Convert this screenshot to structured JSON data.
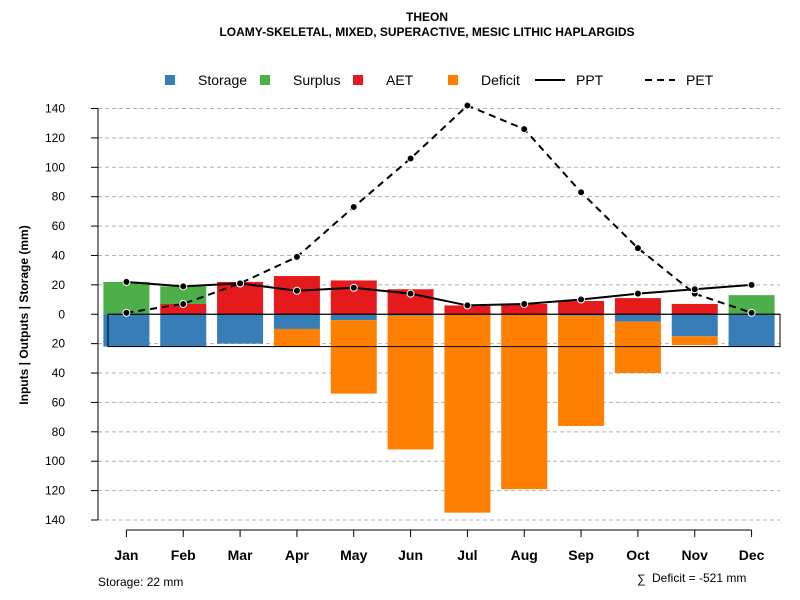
{
  "chart_data": {
    "type": "bar",
    "title": "THEON",
    "subtitle": "LOAMY-SKELETAL, MIXED, SUPERACTIVE, MESIC LITHIC HAPLARGIDS",
    "ylabel": "Inputs | Outputs | Storage    (mm)",
    "ylim": [
      -140,
      140
    ],
    "yticks": [
      140,
      120,
      100,
      80,
      60,
      40,
      20,
      0,
      -20,
      -40,
      -60,
      -80,
      -100,
      -120,
      -140
    ],
    "ytick_labels": [
      "140",
      "120",
      "100",
      "80",
      "60",
      "40",
      "20",
      "0",
      "20",
      "40",
      "60",
      "80",
      "100",
      "120",
      "140"
    ],
    "categories": [
      "Jan",
      "Feb",
      "Mar",
      "Apr",
      "May",
      "Jun",
      "Jul",
      "Aug",
      "Sep",
      "Oct",
      "Nov",
      "Dec"
    ],
    "legend": {
      "placement": "top",
      "entries": [
        {
          "key": "storage",
          "label": "Storage",
          "kind": "box"
        },
        {
          "key": "surplus",
          "label": "Surplus",
          "kind": "box"
        },
        {
          "key": "aet",
          "label": "AET",
          "kind": "box"
        },
        {
          "key": "deficit",
          "label": "Deficit",
          "kind": "box"
        },
        {
          "key": "ppt",
          "label": "PPT",
          "kind": "solid"
        },
        {
          "key": "pet",
          "label": "PET",
          "kind": "dashed"
        }
      ]
    },
    "colors": {
      "storage": "#377EB8",
      "surplus": "#4DAF4A",
      "aet": "#E41A1C",
      "deficit": "#FF7F00",
      "line": "#000000",
      "grid": "#b0b0b0"
    },
    "series": [
      {
        "name": "AET",
        "key": "aet",
        "values": [
          0,
          7,
          22,
          26,
          23,
          17,
          6,
          7,
          9,
          11,
          7,
          0
        ]
      },
      {
        "name": "Surplus",
        "key": "surplus",
        "values": [
          22,
          12,
          0,
          0,
          0,
          0,
          0,
          0,
          0,
          0,
          0,
          13
        ]
      },
      {
        "name": "Storage (utilization)",
        "key": "storage",
        "values": [
          -22,
          -22,
          -20,
          -10,
          -4,
          -1,
          0,
          0,
          -1,
          -5,
          -15,
          -22
        ]
      },
      {
        "name": "Deficit",
        "key": "deficit",
        "values": [
          0,
          0,
          0,
          -12,
          -50,
          -91,
          -135,
          -119,
          -75,
          -35,
          -6,
          0
        ]
      },
      {
        "name": "PPT",
        "key": "ppt",
        "values": [
          22,
          19,
          21,
          16,
          18,
          14,
          6,
          7,
          10,
          14,
          17,
          20
        ]
      },
      {
        "name": "PET",
        "key": "pet",
        "values": [
          1,
          7,
          21,
          39,
          73,
          106,
          142,
          126,
          83,
          45,
          14,
          1
        ]
      }
    ],
    "storage_band": -22,
    "grid": true
  },
  "footer": {
    "storage_note": "Storage: 22 mm",
    "deficit_symbol": "∑",
    "deficit_note": "Deficit = -521 mm"
  }
}
